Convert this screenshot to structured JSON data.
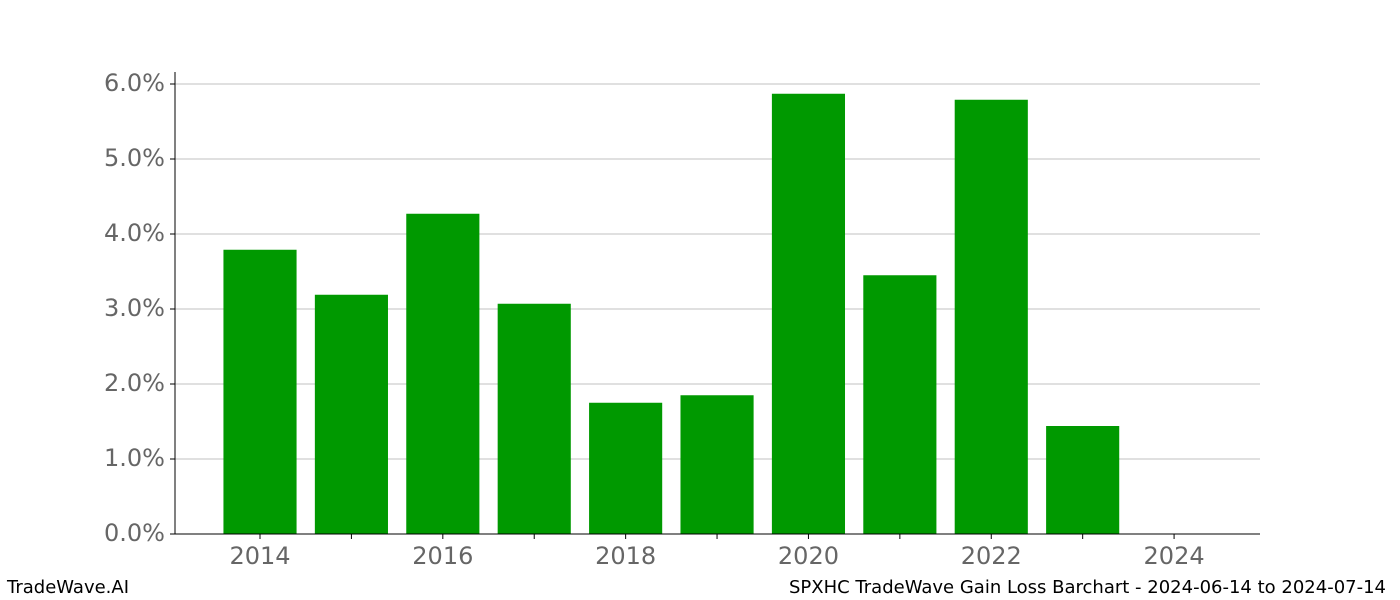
{
  "chart_data": {
    "type": "bar",
    "title": "SPXHC TradeWave Gain Loss Barchart - 2024-06-14 to 2024-07-14",
    "watermark": "TradeWave.AI",
    "x": [
      2014,
      2015,
      2016,
      2017,
      2018,
      2019,
      2020,
      2021,
      2022,
      2023
    ],
    "values": [
      3.79,
      3.19,
      4.27,
      3.07,
      1.75,
      1.85,
      5.87,
      3.45,
      5.79,
      1.44
    ],
    "color": "#009900",
    "xlim": [
      2013.07,
      2024.94
    ],
    "xticks": [
      2014,
      2016,
      2018,
      2020,
      2022,
      2024
    ],
    "xminorticks": [
      2015,
      2017,
      2019,
      2021,
      2023
    ],
    "ylim": [
      0,
      6.16
    ],
    "yticks": [
      {
        "value": 0,
        "label": "0.0%"
      },
      {
        "value": 1,
        "label": "1.0%"
      },
      {
        "value": 2,
        "label": "2.0%"
      },
      {
        "value": 3,
        "label": "3.0%"
      },
      {
        "value": 4,
        "label": "4.0%"
      },
      {
        "value": 5,
        "label": "5.0%"
      },
      {
        "value": 6,
        "label": "6.0%"
      }
    ],
    "grid": true
  }
}
